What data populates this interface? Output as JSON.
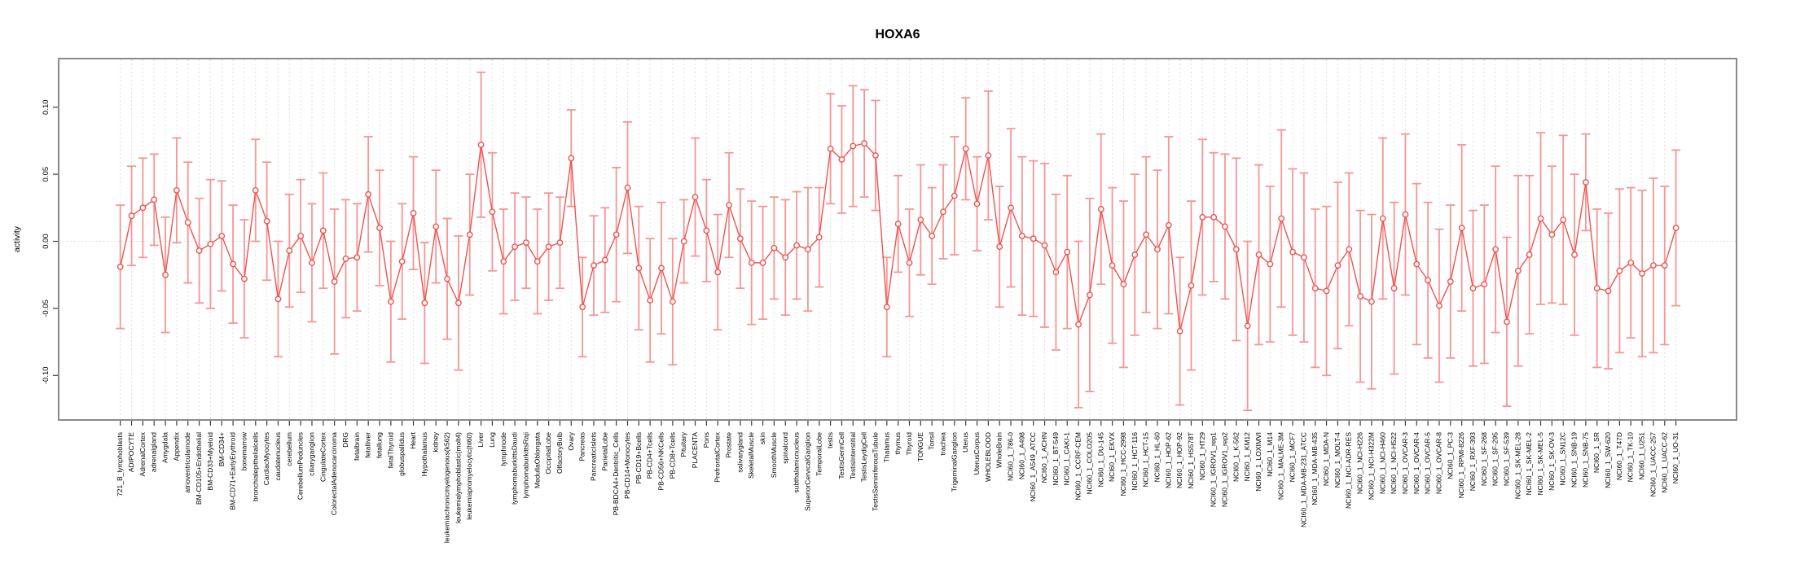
{
  "title": "HOXA6",
  "y_axis": {
    "label": "activity",
    "ticks": [
      "0.10",
      "0.05",
      "0.00",
      "-0.05",
      "-0.10"
    ]
  },
  "colors": {
    "series": "#f0524f",
    "error_bars": "#f59694",
    "grid": "#e1e1e1",
    "zero_line": "#d6d6d6",
    "box": "#8a8a8a",
    "tick": "#3d3d3d",
    "label": "#000000"
  },
  "chart_data": {
    "type": "line",
    "subtype": "points-with-error-bars",
    "title": "HOXA6",
    "xlabel": "",
    "ylabel": "activity",
    "ylim": [
      -0.133,
      0.136
    ],
    "yticks": [
      0.1,
      0.05,
      0.0,
      -0.05,
      -0.1
    ],
    "grid": "vertical dashed line per category; dotted horizontal line at 0",
    "legend_position": "none",
    "categories": [
      "721_B_lymphoblasts",
      "ADIPOCYTE",
      "AdrenalCortex",
      "adrenalgland",
      "Amygdala",
      "Appendix",
      "atrioventricularnode",
      "BM-CD105+Endothelial",
      "BM-CD33+Myeloid",
      "BM-CD34+",
      "BM-CD71+EarlyErythroid",
      "bonemarrow",
      "bronchialepithelialcells",
      "CardiacMyocytes",
      "caudatenucleus",
      "cerebellum",
      "CerebellumPeduncles",
      "ciliaryganglion",
      "CingulateCortex",
      "ColorectalAdenocarcinoma",
      "DRG",
      "fetalbrain",
      "fetalliver",
      "fetallung",
      "fetalThyroid",
      "globuspallidus",
      "Heart",
      "Hypothalamus",
      "kidney",
      "leukemiachronicmyelogenous(k562)",
      "leukemialymphoblastic(molt4)",
      "leukemiapromyelocytic(hl60)",
      "Liver",
      "Lung",
      "lymphnode",
      "lymphomaburkittsDaudi",
      "lymphomaburkittsRaji",
      "MedullaOblongata",
      "OccipitalLobe",
      "OlfactoryBulb",
      "Ovary",
      "Pancreas",
      "PancreaticIslets",
      "ParietalLobe",
      "PB-BDCA4+Dentritic_Cells",
      "PB-CD14+Monocytes",
      "PB-CD19+Bcells",
      "PB-CD4+Tcells",
      "PB-CD56+NKCells",
      "PB-CD8+Tcells",
      "Pituitary",
      "PLACENTA",
      "Pons",
      "PrefrontalCortex",
      "Prostate",
      "salivarygland",
      "SkeletalMuscle",
      "skin",
      "SmoothMuscle",
      "spinalcord",
      "subthalamicnucleus",
      "SuperiorCervicalGanglion",
      "TemporalLobe",
      "testis",
      "TestisGermCell",
      "TestisInterstitial",
      "TestisLeydigCell",
      "TestisSeminiferousTubule",
      "Thalamus",
      "thymus",
      "Thyroid",
      "TONGUE",
      "Tonsil",
      "trachea",
      "TrigeminalGanglion",
      "Uterus",
      "UterusCorpus",
      "WHOLEBLOOD",
      "WholeBrain",
      "NCI60_1_786-0",
      "NCI60_1_A498",
      "NCI60_1_A549_ATCC",
      "NCI60_1_ACHN",
      "NCI60_1_BT-549",
      "NCI60_1_CAKI-1",
      "NCI60_1_CCRF-CEM",
      "NCI60_1_COLO205",
      "NCI60_1_DU-145",
      "NCI60_1_EKVX",
      "NCI60_1_HCC-2998",
      "NCI60_1_HCT-116",
      "NCI60_1_HCT-15",
      "NCI60_1_HL-60",
      "NCI60_1_HOP-62",
      "NCI60_1_HOP-92",
      "NCI60_1_HS578T",
      "NCI60_1_HT29",
      "NCI60_1_IGROV1_rep1",
      "NCI60_1_IGROV1_rep2",
      "NCI60_1_K-562",
      "NCI60_1_KM12",
      "NCI60_1_LOXIMVI",
      "NCI60_1_M14",
      "NCI60_1_MALME-3M",
      "NCI60_1_MCF7",
      "NCI60_1_MDA-MB-231_ATCC",
      "NCI60_1_MDA-MB-435",
      "NCI60_1_MDA-N",
      "NCI60_1_MOLT-4",
      "NCI60_1_NCI-ADR-RES",
      "NCI60_1_NCI-H226",
      "NCI60_1_NCI-H322M",
      "NCI60_1_NCI-H460",
      "NCI60_1_NCI-H522",
      "NCI60_1_OVCAR-3",
      "NCI60_1_OVCAR-4",
      "NCI60_1_OVCAR-5",
      "NCI60_1_OVCAR-8",
      "NCI60_1_PC-3",
      "NCI60_1_RPMI-8226",
      "NCI60_1_RXF-393",
      "NCI60_1_SF-268",
      "NCI60_1_SF-295",
      "NCI60_1_SF-539",
      "NCI60_1_SK-MEL-28",
      "NCI60_1_SK-MEL-2",
      "NCI60_1_SK-MEL-5",
      "NCI60_1_SK-OV-3",
      "NCI60_1_SN12C",
      "NCI60_1_SNB-19",
      "NCI60_1_SNB-75",
      "NCI60_1_SR",
      "NCI60_1_SW-620",
      "NCI60_1_T47D",
      "NCI60_1_TK-10",
      "NCI60_1_U251",
      "NCI60_1_UACC-257",
      "NCI60_1_UACC-62",
      "NCI60_1_UO-31"
    ],
    "values": [
      -0.019,
      0.019,
      0.025,
      0.031,
      -0.025,
      0.038,
      0.014,
      -0.007,
      -0.002,
      0.004,
      -0.017,
      -0.028,
      0.038,
      0.015,
      -0.043,
      -0.007,
      0.004,
      -0.016,
      0.008,
      -0.03,
      -0.013,
      -0.012,
      0.035,
      0.01,
      -0.045,
      -0.015,
      0.021,
      -0.046,
      0.011,
      -0.028,
      -0.046,
      0.005,
      0.072,
      0.022,
      -0.015,
      -0.004,
      -0.001,
      -0.015,
      -0.004,
      -0.001,
      0.062,
      -0.049,
      -0.018,
      -0.014,
      0.005,
      0.04,
      -0.02,
      -0.044,
      -0.02,
      -0.045,
      0.0,
      0.033,
      0.008,
      -0.023,
      0.027,
      0.002,
      -0.016,
      -0.016,
      -0.005,
      -0.012,
      -0.003,
      -0.006,
      0.003,
      0.069,
      0.061,
      0.071,
      0.073,
      0.064,
      -0.049,
      0.013,
      -0.016,
      0.016,
      0.004,
      0.022,
      0.034,
      0.069,
      0.028,
      0.064,
      -0.004,
      0.025,
      0.004,
      0.002,
      -0.003,
      -0.023,
      -0.008,
      -0.062,
      -0.04,
      0.024,
      -0.018,
      -0.032,
      -0.01,
      0.005,
      -0.006,
      0.012,
      -0.067,
      -0.033,
      0.018,
      0.018,
      0.011,
      -0.006,
      -0.063,
      -0.01,
      -0.017,
      0.017,
      -0.008,
      -0.012,
      -0.035,
      -0.037,
      -0.018,
      -0.006,
      -0.041,
      -0.045,
      0.017,
      -0.035,
      0.02,
      -0.017,
      -0.029,
      -0.048,
      -0.03,
      0.01,
      -0.035,
      -0.032,
      -0.006,
      -0.06,
      -0.022,
      -0.01,
      0.017,
      0.005,
      0.016,
      -0.01,
      0.044,
      -0.035,
      -0.037,
      -0.022,
      -0.016,
      -0.024,
      -0.018,
      -0.018,
      0.01
    ],
    "err_lo": [
      -0.065,
      -0.018,
      -0.012,
      -0.003,
      -0.068,
      -0.001,
      -0.031,
      -0.046,
      -0.05,
      -0.037,
      -0.061,
      -0.072,
      0.0,
      -0.029,
      -0.086,
      -0.049,
      -0.038,
      -0.06,
      -0.035,
      -0.084,
      -0.057,
      -0.052,
      -0.008,
      -0.033,
      -0.09,
      -0.058,
      -0.021,
      -0.091,
      -0.031,
      -0.073,
      -0.096,
      -0.04,
      0.018,
      -0.022,
      -0.054,
      -0.044,
      -0.035,
      -0.054,
      -0.044,
      -0.035,
      0.026,
      -0.086,
      -0.055,
      -0.053,
      -0.045,
      -0.009,
      -0.066,
      -0.09,
      -0.069,
      -0.092,
      -0.031,
      -0.011,
      -0.03,
      -0.066,
      -0.012,
      -0.035,
      -0.062,
      -0.058,
      -0.043,
      -0.055,
      -0.043,
      -0.052,
      -0.034,
      0.028,
      0.021,
      0.026,
      0.033,
      0.023,
      -0.086,
      -0.023,
      -0.056,
      -0.025,
      -0.032,
      -0.013,
      -0.01,
      0.031,
      -0.007,
      0.016,
      -0.049,
      -0.034,
      -0.055,
      -0.056,
      -0.064,
      -0.081,
      -0.065,
      -0.124,
      -0.112,
      -0.032,
      -0.076,
      -0.094,
      -0.07,
      -0.053,
      -0.065,
      -0.054,
      -0.122,
      -0.096,
      -0.04,
      -0.03,
      -0.043,
      -0.074,
      -0.126,
      -0.077,
      -0.075,
      -0.049,
      -0.07,
      -0.075,
      -0.094,
      -0.1,
      -0.08,
      -0.063,
      -0.105,
      -0.11,
      -0.043,
      -0.099,
      -0.04,
      -0.077,
      -0.087,
      -0.105,
      -0.087,
      -0.052,
      -0.093,
      -0.091,
      -0.068,
      -0.123,
      -0.093,
      -0.069,
      -0.047,
      -0.046,
      -0.047,
      -0.07,
      0.008,
      -0.094,
      -0.095,
      -0.083,
      -0.072,
      -0.086,
      -0.083,
      -0.077,
      -0.048
    ],
    "err_hi": [
      0.027,
      0.056,
      0.062,
      0.065,
      0.018,
      0.077,
      0.059,
      0.032,
      0.046,
      0.045,
      0.027,
      0.016,
      0.076,
      0.059,
      0.0,
      0.035,
      0.046,
      0.028,
      0.051,
      0.024,
      0.031,
      0.028,
      0.078,
      0.053,
      0.0,
      0.028,
      0.063,
      -0.001,
      0.053,
      0.017,
      0.004,
      0.05,
      0.126,
      0.066,
      0.024,
      0.036,
      0.033,
      0.024,
      0.036,
      0.033,
      0.098,
      -0.012,
      0.019,
      0.025,
      0.055,
      0.089,
      0.026,
      0.002,
      0.029,
      0.002,
      0.031,
      0.077,
      0.046,
      0.02,
      0.066,
      0.039,
      0.03,
      0.026,
      0.033,
      0.031,
      0.037,
      0.04,
      0.04,
      0.11,
      0.101,
      0.116,
      0.113,
      0.105,
      -0.012,
      0.049,
      0.024,
      0.057,
      0.04,
      0.057,
      0.078,
      0.107,
      0.063,
      0.112,
      0.041,
      0.084,
      0.063,
      0.06,
      0.058,
      0.035,
      0.049,
      0.0,
      0.032,
      0.08,
      0.04,
      0.03,
      0.05,
      0.063,
      0.053,
      0.078,
      -0.012,
      0.03,
      0.076,
      0.066,
      0.065,
      0.062,
      0.0,
      0.057,
      0.041,
      0.083,
      0.054,
      0.051,
      0.024,
      0.026,
      0.044,
      0.051,
      0.023,
      0.02,
      0.077,
      0.029,
      0.08,
      0.043,
      0.029,
      0.009,
      0.027,
      0.072,
      0.023,
      0.027,
      0.056,
      0.003,
      0.049,
      0.049,
      0.081,
      0.056,
      0.079,
      0.05,
      0.08,
      0.024,
      0.021,
      0.039,
      0.04,
      0.038,
      0.047,
      0.041,
      0.068
    ]
  }
}
